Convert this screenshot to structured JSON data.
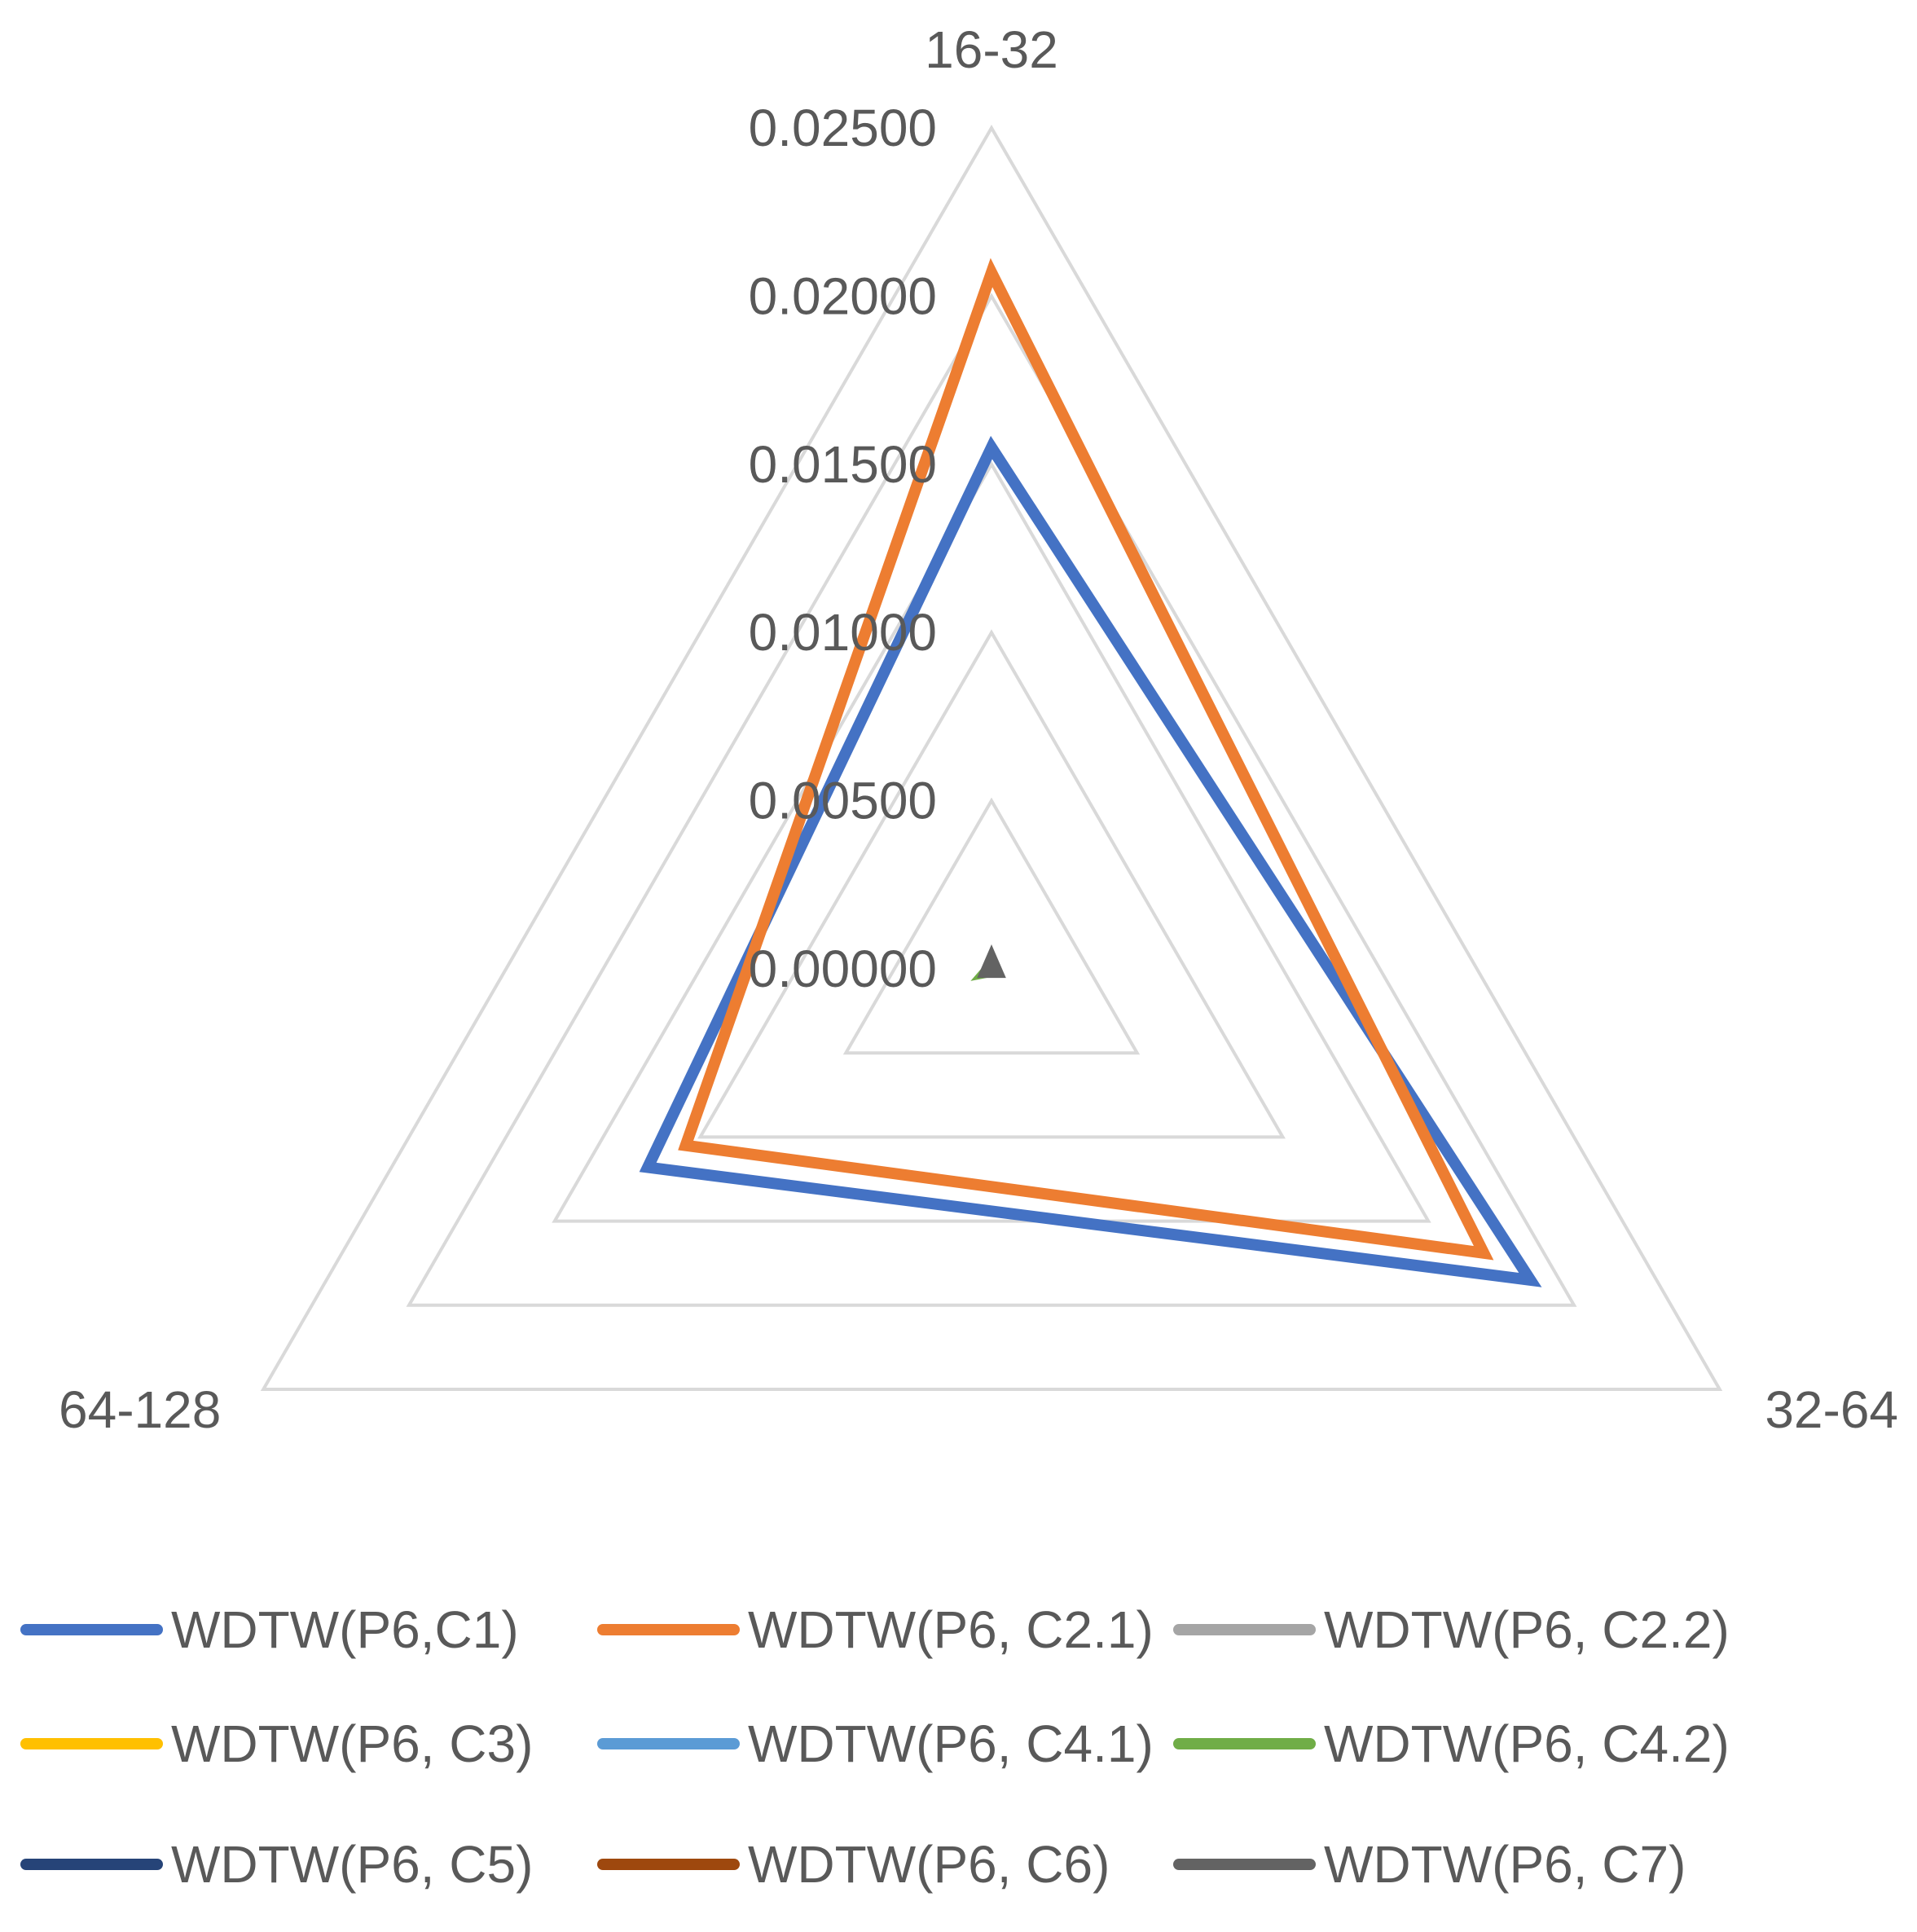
{
  "chart_data": {
    "type": "radar",
    "axes": [
      "16-32",
      "32-64",
      "64-128"
    ],
    "tick_labels": [
      "0.00000",
      "0.00500",
      "0.01000",
      "0.01500",
      "0.02000",
      "0.02500"
    ],
    "ticks": [
      0,
      0.005,
      0.01,
      0.015,
      0.02,
      0.025
    ],
    "rlim": [
      0,
      0.025
    ],
    "grid": true,
    "legend_position": "bottom",
    "series": [
      {
        "name": "WDTW(P6,C1)",
        "color": "#4472C4",
        "values": [
          0.0155,
          0.0185,
          0.0118
        ]
      },
      {
        "name": "WDTW(P6, C2.1)",
        "color": "#ED7D31",
        "values": [
          0.0207,
          0.0169,
          0.0105
        ]
      },
      {
        "name": "WDTW(P6, C2.2)",
        "color": "#A5A5A5",
        "values": [
          0.0002,
          0.0001,
          0.0001
        ]
      },
      {
        "name": "WDTW(P6, C3)",
        "color": "#FFC000",
        "values": [
          0.0001,
          0.0001,
          0.0001
        ]
      },
      {
        "name": "WDTW(P6, C4.1)",
        "color": "#5B9BD5",
        "values": [
          0.0001,
          0.0001,
          0.0001
        ]
      },
      {
        "name": "WDTW(P6, C4.2)",
        "color": "#70AD47",
        "values": [
          0.0001,
          0.0001,
          0.0002
        ]
      },
      {
        "name": "WDTW(P6, C5)",
        "color": "#264478",
        "values": [
          0.0001,
          0.0001,
          0.0001
        ]
      },
      {
        "name": "WDTW(P6, C6)",
        "color": "#9E480E",
        "values": [
          0.0001,
          0.0001,
          0.0001
        ]
      },
      {
        "name": "WDTW(P6, C7)",
        "color": "#636363",
        "values": [
          0.0003,
          0.0002,
          0.0002
        ]
      }
    ]
  }
}
